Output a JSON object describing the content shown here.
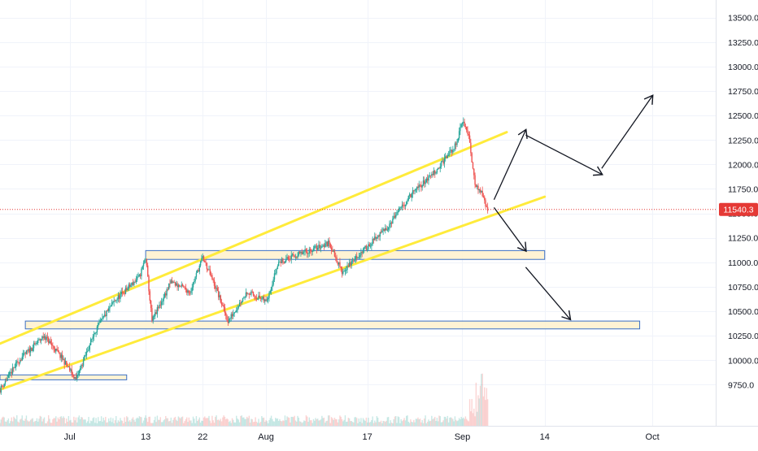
{
  "chart_data": {
    "type": "candlestick",
    "title": "",
    "symbol_price_tag": "11540.3",
    "current_price": 11540.3,
    "x_ticks": [
      {
        "label": "Jul",
        "date": "2020-07-01"
      },
      {
        "label": "13",
        "date": "2020-07-13"
      },
      {
        "label": "22",
        "date": "2020-07-22"
      },
      {
        "label": "Aug",
        "date": "2020-08-01"
      },
      {
        "label": "17",
        "date": "2020-08-17"
      },
      {
        "label": "Sep",
        "date": "2020-09-01"
      },
      {
        "label": "14",
        "date": "2020-09-14"
      },
      {
        "label": "Oct",
        "date": "2020-10-01"
      }
    ],
    "y_ticks": [
      9750,
      10000,
      10250,
      10500,
      10750,
      11000,
      11250,
      11500,
      11750,
      12000,
      12250,
      12500,
      12750,
      13000,
      13250,
      13500
    ],
    "y_tick_labels": [
      "9750.0",
      "10000.0",
      "10250.0",
      "10500.0",
      "10750.0",
      "11000.0",
      "11250.0",
      "11500.0",
      "11750.0",
      "12000.0",
      "12250.0",
      "12500.0",
      "12750.0",
      "13000.0",
      "13250.0",
      "13500.0"
    ],
    "ylim": [
      9330,
      13680
    ],
    "xlim": [
      "2020-06-20",
      "2020-10-11"
    ],
    "price_path": [
      [
        "2020-06-20",
        9700
      ],
      [
        "2020-06-23",
        10000
      ],
      [
        "2020-06-27",
        10250
      ],
      [
        "2020-06-30",
        10000
      ],
      [
        "2020-07-02",
        9800
      ],
      [
        "2020-07-05",
        10300
      ],
      [
        "2020-07-08",
        10600
      ],
      [
        "2020-07-12",
        10850
      ],
      [
        "2020-07-13",
        11050
      ],
      [
        "2020-07-14",
        10400
      ],
      [
        "2020-07-17",
        10800
      ],
      [
        "2020-07-20",
        10700
      ],
      [
        "2020-07-22",
        11050
      ],
      [
        "2020-07-24",
        10750
      ],
      [
        "2020-07-26",
        10400
      ],
      [
        "2020-07-29",
        10700
      ],
      [
        "2020-08-01",
        10600
      ],
      [
        "2020-08-03",
        11000
      ],
      [
        "2020-08-07",
        11100
      ],
      [
        "2020-08-11",
        11200
      ],
      [
        "2020-08-13",
        10900
      ],
      [
        "2020-08-16",
        11100
      ],
      [
        "2020-08-20",
        11350
      ],
      [
        "2020-08-24",
        11700
      ],
      [
        "2020-08-28",
        11950
      ],
      [
        "2020-08-31",
        12200
      ],
      [
        "2020-09-01",
        12450
      ],
      [
        "2020-09-02",
        12300
      ],
      [
        "2020-09-03",
        11800
      ],
      [
        "2020-09-04",
        11700
      ],
      [
        "2020-09-05",
        11540
      ]
    ],
    "channel_lines": [
      {
        "from": [
          "2020-06-20",
          10170
        ],
        "to": [
          "2020-09-08",
          12330
        ],
        "color": "#ffeb3b"
      },
      {
        "from": [
          "2020-06-20",
          9700
        ],
        "to": [
          "2020-09-14",
          11670
        ],
        "color": "#ffeb3b"
      }
    ],
    "zones": [
      {
        "x0": "2020-07-13",
        "x1": "2020-09-14",
        "y0": 11030,
        "y1": 11120
      },
      {
        "x0": "2020-06-24",
        "x1": "2020-09-29",
        "y0": 10320,
        "y1": 10400
      },
      {
        "x0": "2020-06-20",
        "x1": "2020-07-10",
        "y0": 9800,
        "y1": 9850
      }
    ],
    "projection_arrows": [
      {
        "from": [
          "2020-09-06",
          11640
        ],
        "to": [
          "2020-09-11",
          12350
        ]
      },
      {
        "from": [
          "2020-09-11",
          12300
        ],
        "to": [
          "2020-09-23",
          11900
        ]
      },
      {
        "from": [
          "2020-09-23",
          11960
        ],
        "to": [
          "2020-10-01",
          12700
        ]
      },
      {
        "from": [
          "2020-09-06",
          11560
        ],
        "to": [
          "2020-09-11",
          11120
        ]
      },
      {
        "from": [
          "2020-09-11",
          10950
        ],
        "to": [
          "2020-09-18",
          10420
        ]
      }
    ],
    "colors": {
      "up": "#26a69a",
      "down": "#ef5350",
      "channel": "#ffeb3b",
      "zone_fill": "#fff1cc",
      "zone_stroke": "#3a6fc4",
      "arrow": "#131722",
      "price_tag": "#e53935",
      "grid": "#f0f3fa",
      "axis_text": "#131722"
    },
    "grid": true
  }
}
